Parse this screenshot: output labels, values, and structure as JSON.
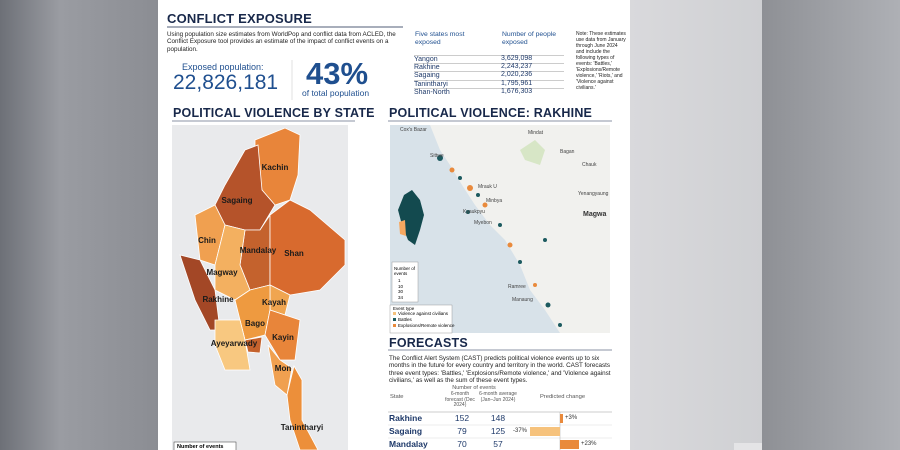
{
  "exposure": {
    "title": "CONFLICT EXPOSURE",
    "description": "Using population size estimates from WorldPop and conflict data from ACLED, the Conflict Exposure tool provides an estimate of the impact of conflict events on a population.",
    "exposed_label": "Exposed population:",
    "exposed_value": "22,826,181",
    "share_value": "43%",
    "share_label": "of total population",
    "table": {
      "headers": [
        "Five states most exposed",
        "Number of people exposed"
      ],
      "rows": [
        [
          "Yangon",
          "3,629,098"
        ],
        [
          "Rakhine",
          "2,243,237"
        ],
        [
          "Sagaing",
          "2,020,236"
        ],
        [
          "Tanintharyi",
          "1,795,961"
        ],
        [
          "Shan-North",
          "1,676,303"
        ]
      ]
    },
    "note": "Note: These estimates use data from January through June 2024 and include the following types of events: 'Battles,' 'Explosions/Remote violence,' 'Riots,' and 'Violence against civilians.'"
  },
  "state_map": {
    "title": "POLITICAL VIOLENCE BY STATE",
    "labels": [
      "Kachin",
      "Sagaing",
      "Chin",
      "Mandalay",
      "Shan",
      "Magway",
      "Rakhine",
      "Kayah",
      "Bago",
      "Ayeyarwady",
      "Kayin",
      "Mon",
      "Tanintharyi"
    ],
    "legend_title": "Number of events"
  },
  "rakhine_map": {
    "title": "POLITICAL VIOLENCE: RAKHINE",
    "places": [
      "Cox's Bazar",
      "Mindat",
      "Bagan",
      "Chauk",
      "Yenangyaung",
      "Magwa",
      "Sittwe",
      "Mrauk U",
      "Minbya",
      "Myebon",
      "Kyaukpyu",
      "Ramree",
      "Manaung"
    ],
    "legend": {
      "size_title": "Number of events",
      "sizes": [
        "1",
        "10",
        "30",
        "34"
      ],
      "type_title": "Event type",
      "types": [
        "Violence against civilians",
        "Battles",
        "Explosions/Remote violence"
      ]
    }
  },
  "forecasts": {
    "title": "FORECASTS",
    "description": "The Conflict Alert System (CAST) predicts political violence events up to six months in the future for every country and territory in the world. CAST forecasts three event types: 'Battles,' 'Explosions/Remote violence,' and 'Violence against civilians,' as well as the sum of these event types.",
    "group_header": "Number of events",
    "headers": [
      "State",
      "6-month forecast (Dec 2024)",
      "6-month average (Jan–Jun 2024)",
      "Predicted change"
    ],
    "rows": [
      [
        "Rakhine",
        "152",
        "148",
        "+3%"
      ],
      [
        "Sagaing",
        "79",
        "125",
        "-37%"
      ],
      [
        "Mandalay",
        "70",
        "57",
        "+23%"
      ]
    ]
  }
}
